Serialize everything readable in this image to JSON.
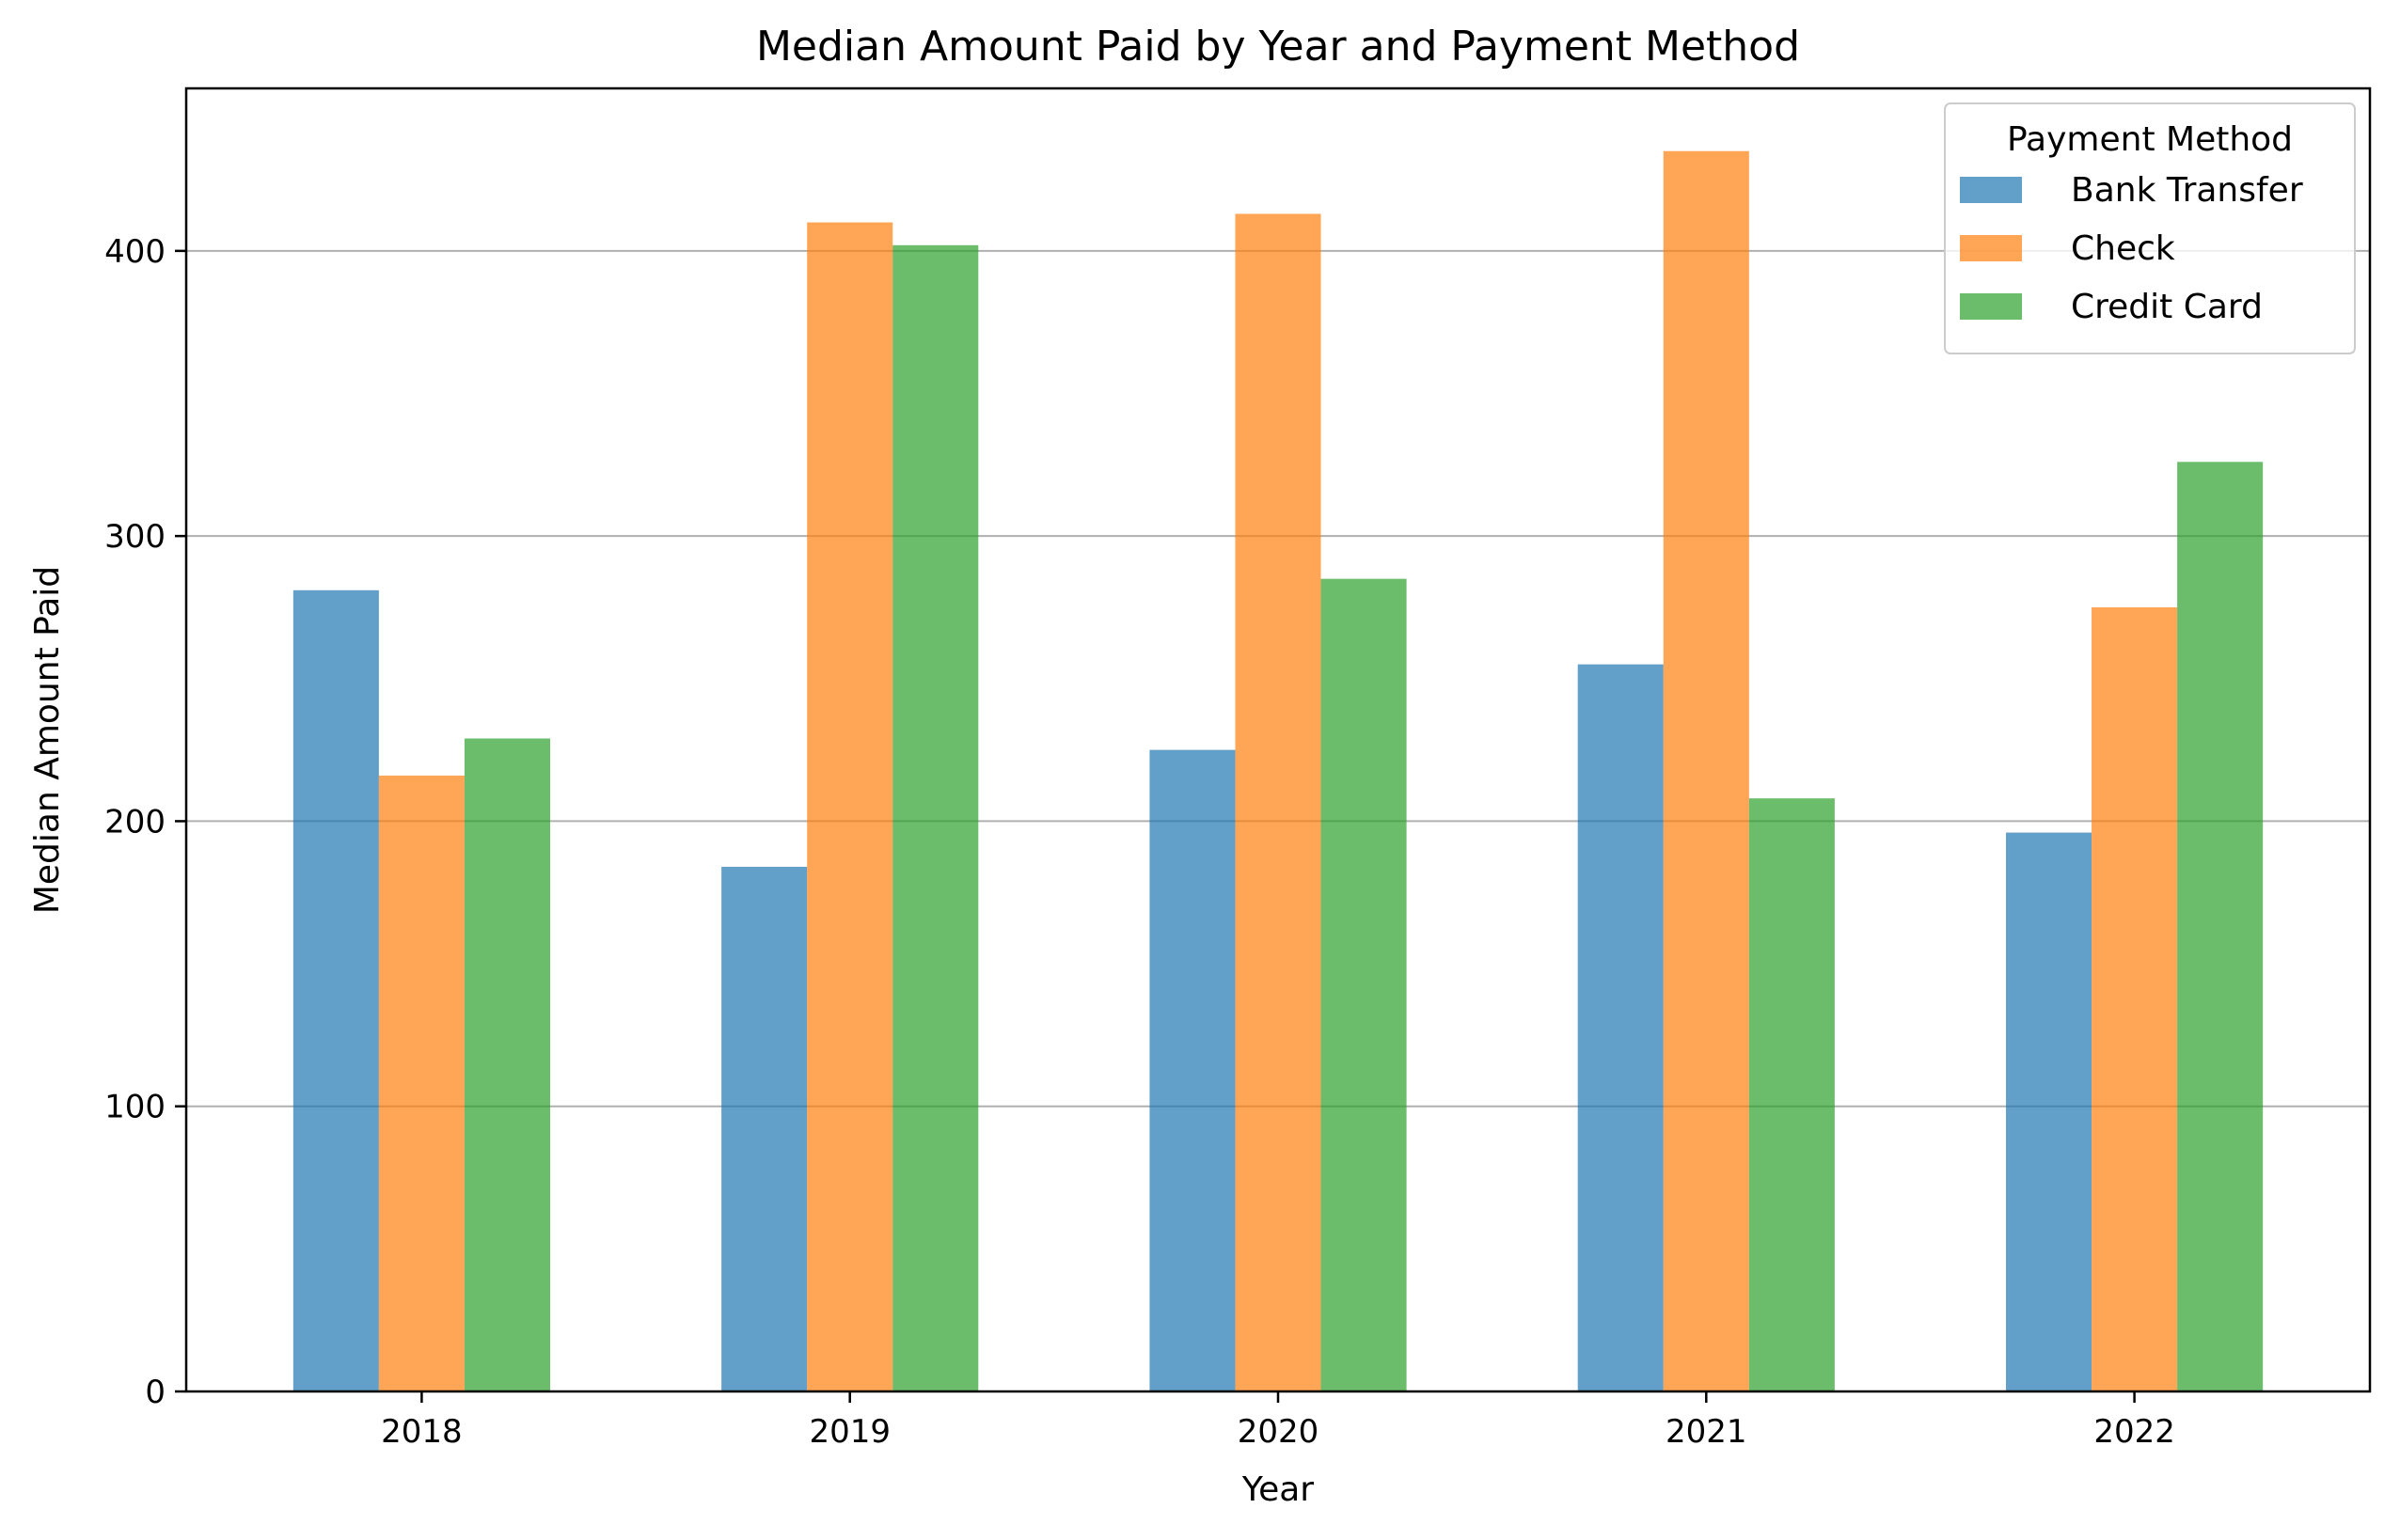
{
  "chart_data": {
    "type": "bar",
    "title": "Median Amount Paid by Year and Payment Method",
    "xlabel": "Year",
    "ylabel": "Median Amount Paid",
    "categories": [
      "2018",
      "2019",
      "2020",
      "2021",
      "2022"
    ],
    "ylim": [
      0,
      457
    ],
    "yticks": [
      0,
      100,
      200,
      300,
      400
    ],
    "grid": "y",
    "legend": {
      "title": "Payment Method",
      "placement": "top-right"
    },
    "series": [
      {
        "name": "Bank Transfer",
        "color": "#1f77b4",
        "values": [
          281,
          184,
          225,
          255,
          196
        ]
      },
      {
        "name": "Check",
        "color": "#ff7f0e",
        "values": [
          216,
          410,
          413,
          435,
          275
        ]
      },
      {
        "name": "Credit Card",
        "color": "#2ca02c",
        "values": [
          229,
          402,
          285,
          208,
          326
        ]
      }
    ],
    "bar_opacity": 0.7
  }
}
